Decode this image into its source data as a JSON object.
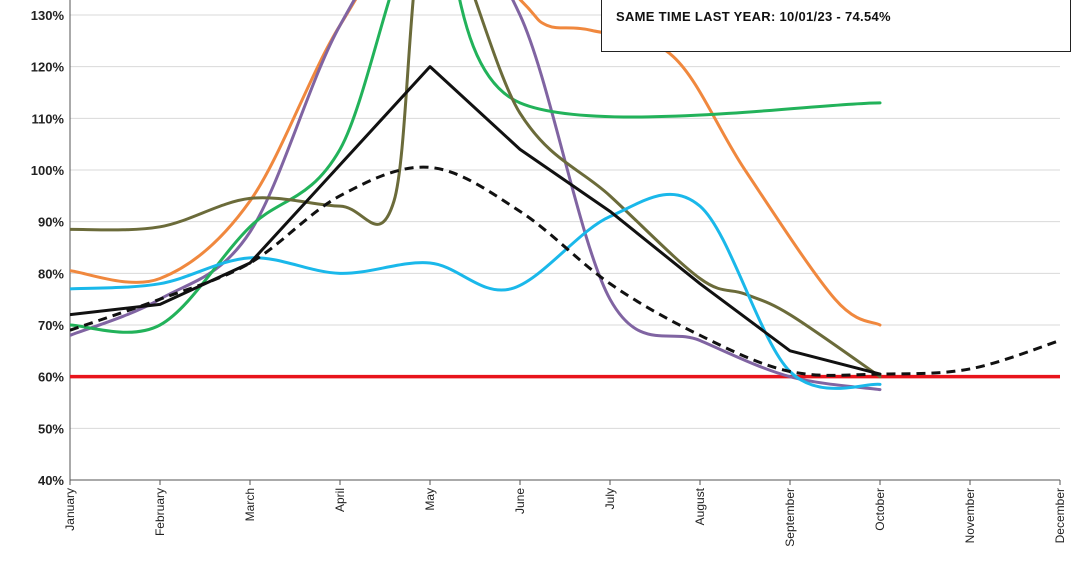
{
  "chart_data": {
    "type": "line",
    "categories": [
      "January",
      "February",
      "March",
      "April",
      "May",
      "June",
      "July",
      "August",
      "September",
      "October",
      "November",
      "December"
    ],
    "yticks": [
      "40%",
      "50%",
      "60%",
      "70%",
      "80%",
      "90%",
      "100%",
      "110%",
      "120%",
      "130%"
    ],
    "ylim": [
      40,
      130
    ],
    "grid": true,
    "threshold": {
      "value": 60,
      "color": "#e8141b"
    },
    "annotation": "SAME TIME LAST YEAR: 10/01/23 - 74.54%",
    "series": [
      {
        "color": "#f0883e",
        "style": "solid",
        "x": [
          0,
          1,
          2,
          3,
          4,
          5,
          5.3,
          5.8,
          6.7,
          7.5,
          8.5,
          9
        ],
        "y": [
          80.5,
          79,
          94,
          128,
          150,
          133,
          128,
          127,
          122,
          100,
          75,
          70
        ]
      },
      {
        "color": "#8064a2",
        "style": "solid",
        "x": [
          0,
          1,
          2,
          3,
          4,
          5,
          6,
          7,
          8,
          9
        ],
        "y": [
          68,
          75,
          88,
          128,
          150,
          130,
          75,
          67,
          60,
          57.5
        ]
      },
      {
        "color": "#22b25a",
        "style": "solid",
        "x": [
          0,
          1,
          2,
          3,
          4,
          5,
          9
        ],
        "y": [
          70,
          70,
          89,
          104,
          150,
          113,
          113
        ]
      },
      {
        "color": "#6b6b3a",
        "style": "solid",
        "x": [
          0,
          1,
          2,
          3,
          3.6,
          4,
          5,
          6,
          7,
          7.5,
          8,
          9
        ],
        "y": [
          88.5,
          89,
          94.5,
          93,
          94,
          150,
          111,
          95,
          79,
          76,
          72,
          60
        ]
      },
      {
        "color": "#1ab8ea",
        "style": "solid",
        "x": [
          0,
          1,
          2,
          3,
          4,
          4.9,
          6,
          7,
          8,
          9
        ],
        "y": [
          77,
          78,
          83,
          80,
          82,
          77,
          91,
          93,
          61,
          58.5
        ]
      },
      {
        "color": "#111111",
        "style": "solid",
        "x": [
          0,
          1,
          2,
          4,
          5,
          6,
          7,
          8,
          9
        ],
        "y": [
          72,
          74,
          82,
          120,
          104,
          92,
          78,
          65,
          60.5
        ]
      },
      {
        "color": "#111111",
        "style": "dashed",
        "x": [
          0,
          1,
          2,
          3,
          4,
          5,
          6,
          7,
          8,
          9,
          10,
          11
        ],
        "y": [
          69,
          75,
          82,
          95,
          100.5,
          92,
          78,
          68,
          61,
          60.5,
          61.5,
          67
        ]
      }
    ]
  }
}
